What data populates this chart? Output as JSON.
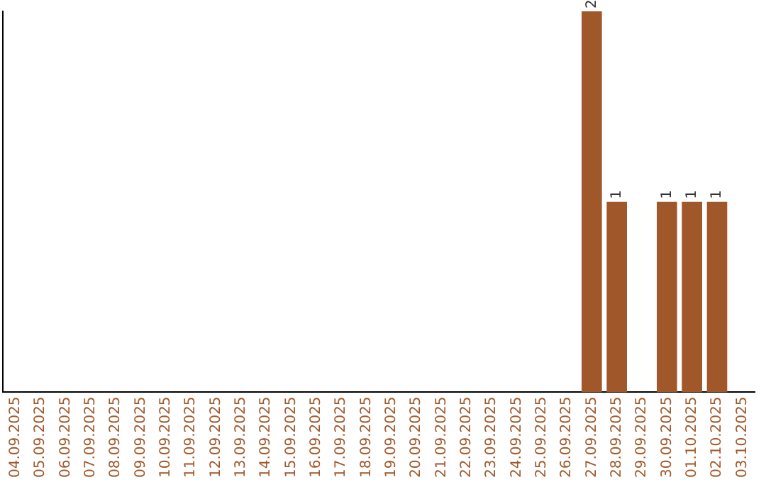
{
  "chart_data": {
    "type": "bar",
    "categories": [
      "04.09.2025",
      "05.09.2025",
      "06.09.2025",
      "07.09.2025",
      "08.09.2025",
      "09.09.2025",
      "10.09.2025",
      "11.09.2025",
      "12.09.2025",
      "13.09.2025",
      "14.09.2025",
      "15.09.2025",
      "16.09.2025",
      "17.09.2025",
      "18.09.2025",
      "19.09.2025",
      "20.09.2025",
      "21.09.2025",
      "22.09.2025",
      "23.09.2025",
      "24.09.2025",
      "25.09.2025",
      "26.09.2025",
      "27.09.2025",
      "28.09.2025",
      "29.09.2025",
      "30.09.2025",
      "01.10.2025",
      "02.10.2025",
      "03.10.2025"
    ],
    "values": [
      null,
      null,
      null,
      null,
      null,
      null,
      null,
      null,
      null,
      null,
      null,
      null,
      null,
      null,
      null,
      null,
      null,
      null,
      null,
      null,
      null,
      null,
      null,
      2,
      1,
      null,
      1,
      1,
      1,
      null
    ],
    "data_labels": true,
    "color": "#a0582a"
  }
}
